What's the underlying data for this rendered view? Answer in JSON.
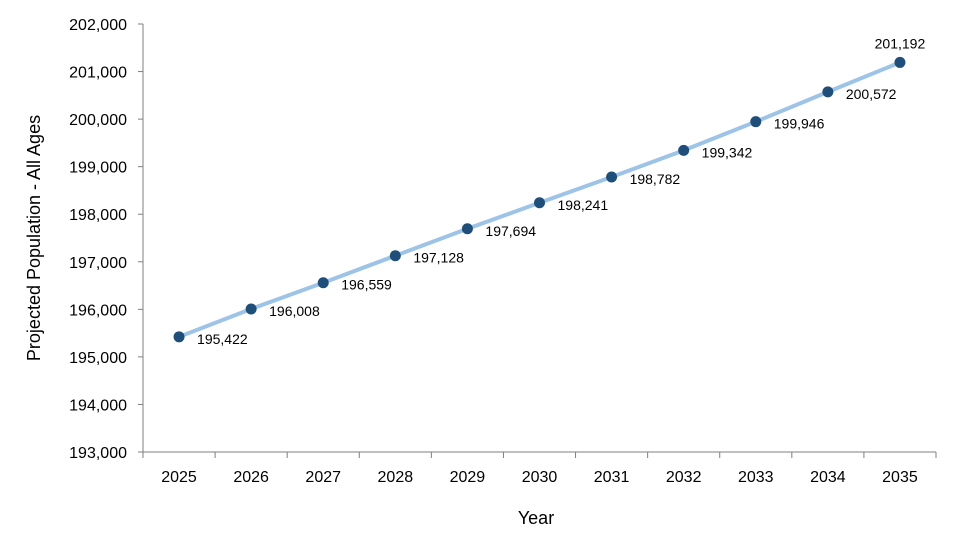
{
  "chart_data": {
    "type": "line",
    "title": "",
    "xlabel": "Year",
    "ylabel": "Projected Population - All Ages",
    "categories": [
      "2025",
      "2026",
      "2027",
      "2028",
      "2029",
      "2030",
      "2031",
      "2032",
      "2033",
      "2034",
      "2035"
    ],
    "series": [
      {
        "values": [
          195422,
          196008,
          196559,
          197128,
          197694,
          198241,
          198782,
          199342,
          199946,
          200572,
          201192
        ],
        "data_labels": [
          "195,422",
          "196,008",
          "196,559",
          "197,128",
          "197,694",
          "198,241",
          "198,782",
          "199,342",
          "199,946",
          "200,572",
          "201,192"
        ],
        "line_color": "#9DC3E6",
        "marker_color": "#1F4E79"
      }
    ],
    "ylim": [
      193000,
      202000
    ],
    "y_ticks": [
      193000,
      194000,
      195000,
      196000,
      197000,
      198000,
      199000,
      200000,
      201000,
      202000
    ],
    "y_tick_labels": [
      "193,000",
      "194,000",
      "195,000",
      "196,000",
      "197,000",
      "198,000",
      "199,000",
      "200,000",
      "201,000",
      "202,000"
    ],
    "grid": false,
    "legend": "none"
  }
}
